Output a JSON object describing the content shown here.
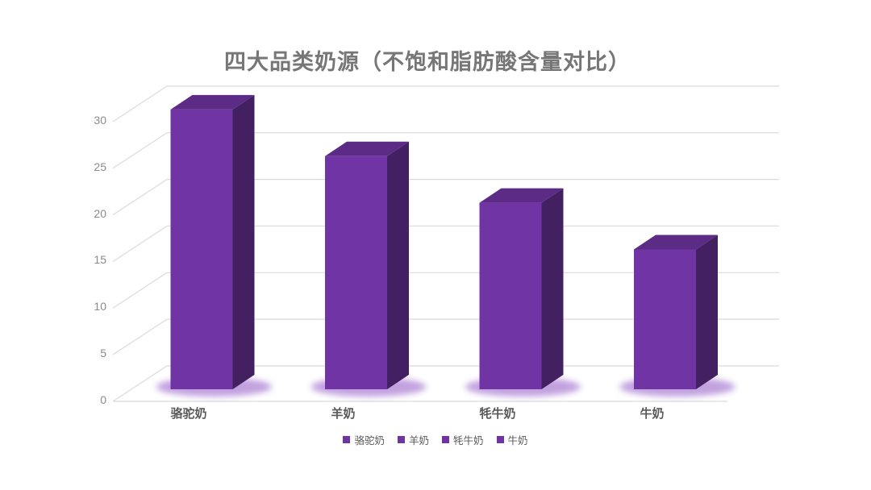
{
  "title": "四大品类奶源（不饱和脂肪酸含量对比）",
  "colors": {
    "bar_front": "#7134A4",
    "bar_top": "#5C2B86",
    "bar_side": "#432061",
    "base_glow": "#8E52C4",
    "gridline": "#DBDBDB",
    "title_text": "#767676",
    "tick_text": "#8A8A8A",
    "category_text": "#595959",
    "legend_text": "#595959",
    "legend_marker": "#7033A3",
    "background": "#FFFFFF"
  },
  "chart_data": {
    "type": "bar",
    "style": "3d",
    "title": "四大品类奶源（不饱和脂肪酸含量对比）",
    "categories": [
      "骆驼奶",
      "羊奶",
      "牦牛奶",
      "牛奶"
    ],
    "values": [
      30,
      25,
      20,
      15
    ],
    "series": [
      {
        "name": "骆驼奶",
        "value": 30
      },
      {
        "name": "羊奶",
        "value": 25
      },
      {
        "name": "牦牛奶",
        "value": 20
      },
      {
        "name": "牛奶",
        "value": 15
      }
    ],
    "xlabel": "",
    "ylabel": "",
    "y_ticks": [
      0,
      5,
      10,
      15,
      20,
      25,
      30
    ],
    "ylim": [
      0,
      30
    ],
    "grid": true,
    "legend": {
      "position": "bottom",
      "entries": [
        "骆驼奶",
        "羊奶",
        "牦牛奶",
        "牛奶"
      ]
    }
  }
}
